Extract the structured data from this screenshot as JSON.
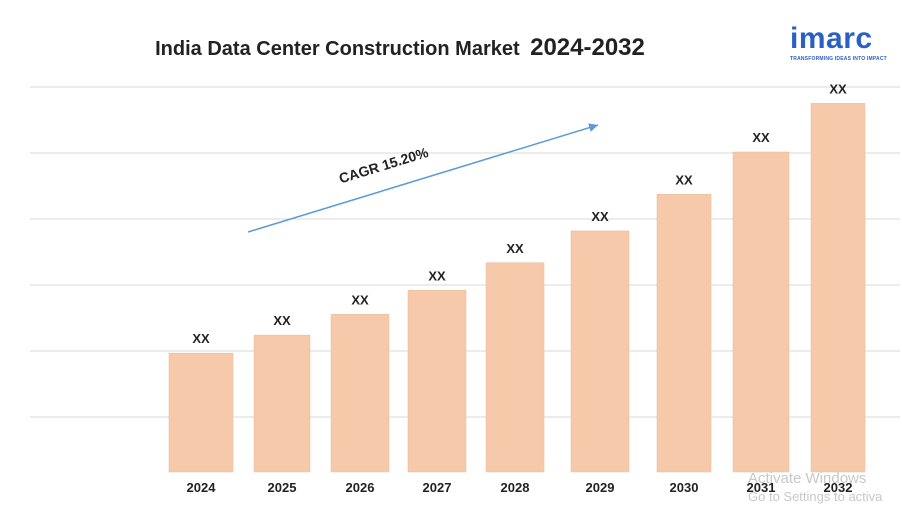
{
  "title": {
    "main": "India Data Center Construction Market",
    "years": "2024-2032"
  },
  "logo": {
    "word": "imarc",
    "tagline": "TRANSFORMING IDEAS INTO IMPACT"
  },
  "cagr_label": "CAGR 15.20%",
  "watermark": {
    "line1": "Activate Windows",
    "line2": "Go to Settings to activa"
  },
  "colors": {
    "bar": "#f7c9ab",
    "bar_edge": "#e8b899",
    "grid": "#d9d9d9",
    "arrow": "#5b9bd5",
    "logo": "#2a5fc4"
  },
  "chart_data": {
    "type": "bar",
    "categories": [
      "2024",
      "2025",
      "2026",
      "2027",
      "2028",
      "2029",
      "2030",
      "2031",
      "2032"
    ],
    "values": [
      1.0,
      1.152,
      1.327,
      1.529,
      1.761,
      2.029,
      2.337,
      2.693,
      3.102
    ],
    "data_labels": [
      "XX",
      "XX",
      "XX",
      "XX",
      "XX",
      "XX",
      "XX",
      "XX",
      "XX"
    ],
    "ylim": [
      0,
      3.4
    ],
    "grid": true,
    "xlabel": "",
    "ylabel": ""
  }
}
